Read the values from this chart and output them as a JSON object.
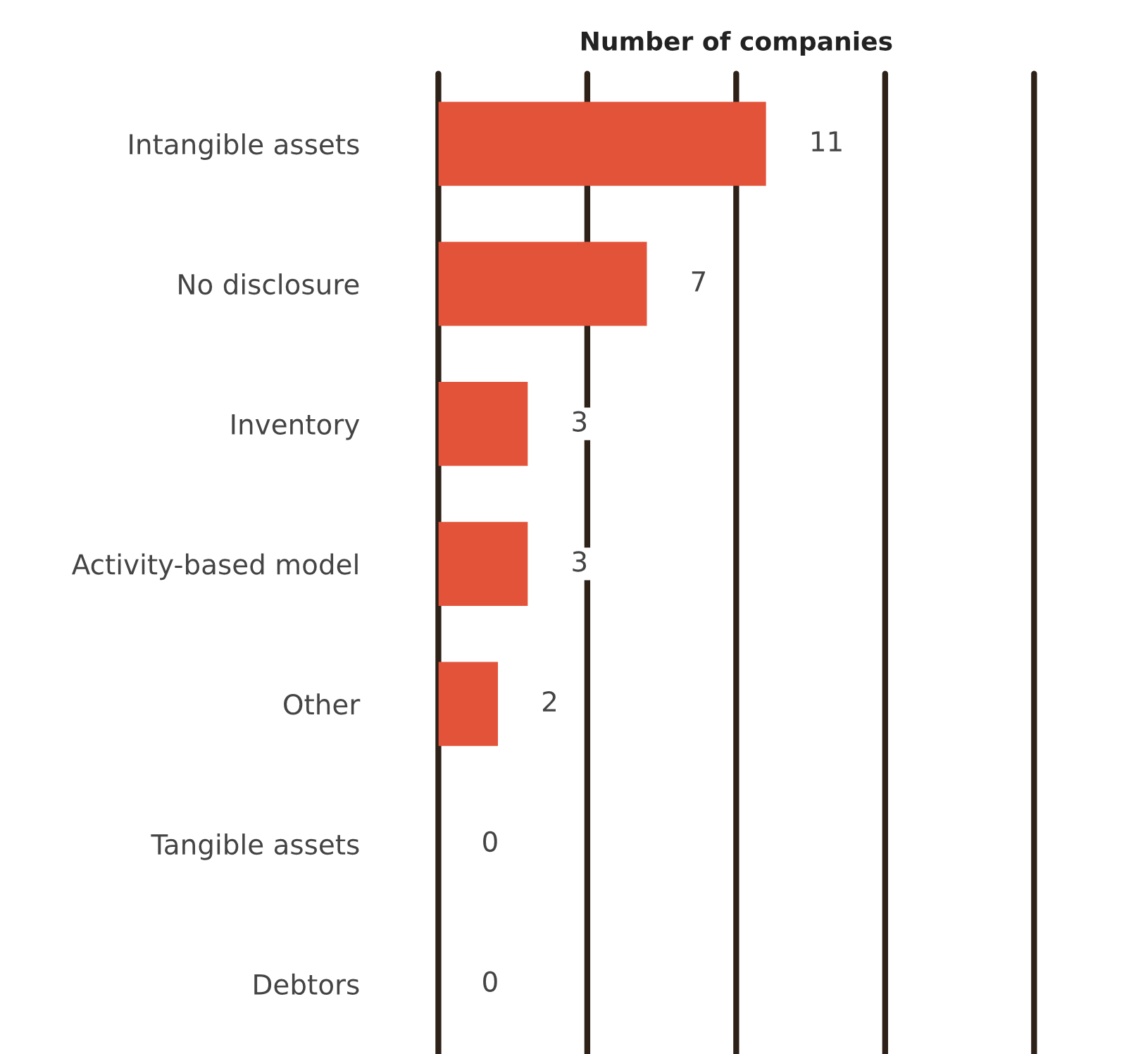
{
  "chart_data": {
    "type": "bar",
    "orientation": "horizontal",
    "xlabel": "Number of companies",
    "categories": [
      "Intangible assets",
      "No disclosure",
      "Inventory",
      "Activity-based model",
      "Other",
      "Tangible assets",
      "Debtors"
    ],
    "values": [
      11,
      7,
      3,
      3,
      2,
      0,
      0
    ],
    "color": "#e3533a",
    "xlim": [
      0,
      20
    ],
    "xticks": [
      {
        "value": 0,
        "label": null
      },
      {
        "value": 5,
        "label": null
      },
      {
        "value": 10,
        "label": null
      },
      {
        "value": 15,
        "label": null
      },
      {
        "value": 20,
        "label": null
      }
    ],
    "tick_labels": "y",
    "grid": "x",
    "data_labels": true
  }
}
